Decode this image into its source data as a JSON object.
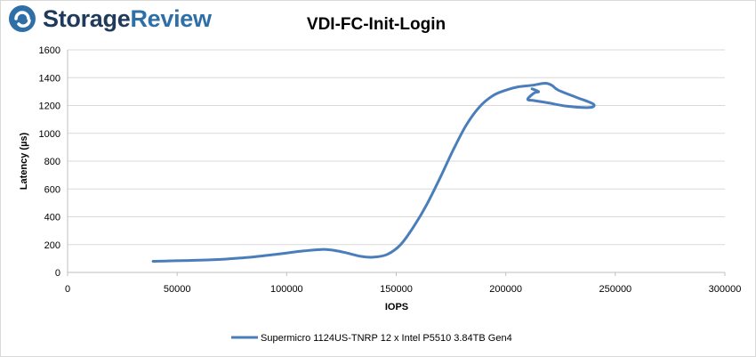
{
  "brand": {
    "name_part1": "Storage",
    "name_part2": "Review",
    "logo_icon": "storagereview-logo-icon",
    "color": "#1f3a5a",
    "accent": "#2f6fa8"
  },
  "chart_data": {
    "type": "line",
    "title": "VDI-FC-Init-Login",
    "xlabel": "IOPS",
    "ylabel": "Latency (µs)",
    "xlim": [
      0,
      300000
    ],
    "ylim": [
      0,
      1600
    ],
    "xticks": [
      0,
      50000,
      100000,
      150000,
      200000,
      250000,
      300000
    ],
    "yticks": [
      0,
      200,
      400,
      600,
      800,
      1000,
      1200,
      1400,
      1600
    ],
    "grid": "horizontal",
    "legend_position": "bottom",
    "series": [
      {
        "name": "Supermicro 1124US-TNRP 12 x Intel P5510 3.84TB Gen4",
        "color": "#4a7ebb",
        "x": [
          39000,
          65000,
          80000,
          95000,
          108000,
          118000,
          126000,
          134000,
          140000,
          146000,
          152000,
          158000,
          164000,
          170000,
          176000,
          182000,
          188000,
          194000,
          200000,
          206000,
          212000,
          218000,
          221000,
          224000,
          232000,
          240000,
          238000,
          228000,
          219000,
          213000,
          210000,
          213000,
          215000,
          212000
        ],
        "y": [
          80,
          90,
          105,
          130,
          155,
          165,
          145,
          115,
          110,
          130,
          200,
          330,
          490,
          680,
          880,
          1060,
          1190,
          1270,
          1310,
          1335,
          1345,
          1360,
          1345,
          1310,
          1260,
          1210,
          1185,
          1195,
          1220,
          1235,
          1245,
          1290,
          1300,
          1320
        ]
      }
    ]
  }
}
